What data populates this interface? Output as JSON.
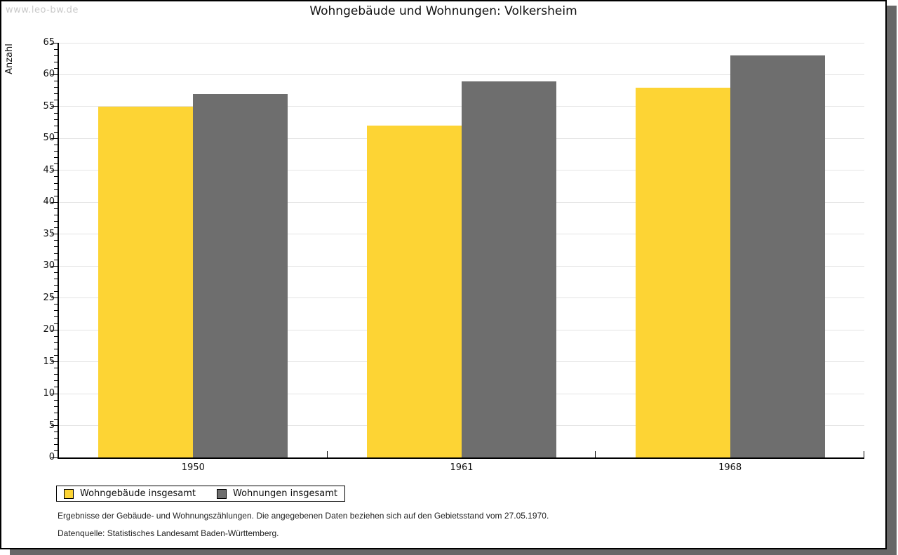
{
  "watermark": "www.leo-bw.de",
  "chart_data": {
    "type": "bar",
    "title": "Wohngebäude und Wohnungen: Volkersheim",
    "ylabel": "Anzahl",
    "xlabel": "",
    "categories": [
      "1950",
      "1961",
      "1968"
    ],
    "series": [
      {
        "name": "Wohngebäude insgesamt",
        "color": "#fdd434",
        "values": [
          55,
          52,
          58
        ]
      },
      {
        "name": "Wohnungen insgesamt",
        "color": "#6e6e6e",
        "values": [
          57,
          59,
          63
        ]
      }
    ],
    "ylim": [
      0,
      65
    ],
    "ytick_step": 5,
    "minor_tick_step": 1,
    "grid": true,
    "legend_position": "bottom-left"
  },
  "footer": {
    "line1": "Ergebnisse der Gebäude- und Wohnungszählungen. Die angegebenen Daten beziehen sich auf den Gebietsstand vom 27.05.1970.",
    "line2": "Datenquelle: Statistisches Landesamt Baden-Württemberg."
  }
}
